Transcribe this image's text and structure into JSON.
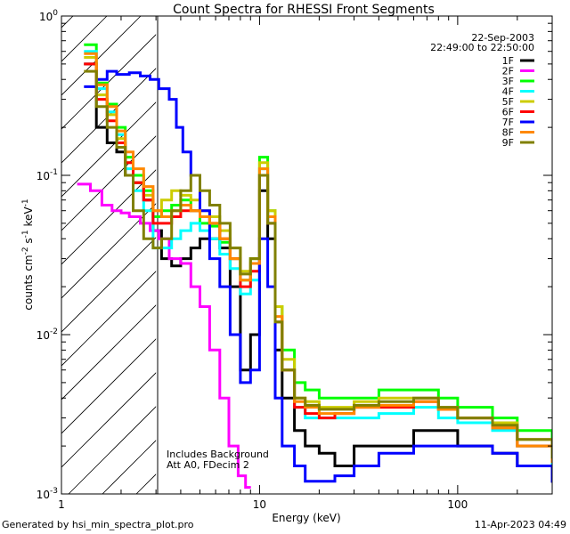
{
  "footer": {
    "generated_by": "Generated by hsi_min_spectra_plot.pro",
    "timestamp": "11-Apr-2023 04:49"
  },
  "chart_data": {
    "type": "line",
    "title": "Count Spectra for RHESSI Front Segments",
    "xlabel": "Energy (keV)",
    "ylabel_parts": [
      "counts cm",
      "-2",
      " s",
      "-1",
      " keV",
      "-1"
    ],
    "xscale": "log",
    "yscale": "log",
    "xlim": [
      1,
      300
    ],
    "ylim": [
      0.001,
      1
    ],
    "x_ticks": [
      {
        "value": 10,
        "label": "10"
      },
      {
        "value": 100,
        "label": "100"
      }
    ],
    "y_ticks": [
      {
        "mantissa": "10",
        "exponent": "0",
        "value": 1
      },
      {
        "mantissa": "10",
        "exponent": "-1",
        "value": 0.1
      },
      {
        "mantissa": "10",
        "exponent": "-2",
        "value": 0.01
      },
      {
        "mantissa": "10",
        "exponent": "-3",
        "value": 0.001
      }
    ],
    "shaded_region": {
      "x_from": 1,
      "x_to": 3,
      "pattern": "diagonal hatch"
    },
    "legend_header": [
      "22-Sep-2003",
      "22:49:00 to 22:50:00"
    ],
    "legend_position": "top-right",
    "annotations": [
      "Includes Background",
      "Att A0, FDecim 2"
    ],
    "series": [
      {
        "name": "1F",
        "color": "#000000",
        "x": [
          1.3,
          1.5,
          1.7,
          1.9,
          2.1,
          2.3,
          2.6,
          2.9,
          3.2,
          3.6,
          4,
          4.5,
          5,
          5.6,
          6.3,
          7.1,
          8,
          9,
          10,
          11,
          12,
          13,
          15,
          17,
          20,
          24,
          30,
          40,
          60,
          80,
          100,
          150,
          200,
          300
        ],
        "y": [
          0.5,
          0.2,
          0.16,
          0.14,
          0.1,
          0.09,
          0.07,
          0.045,
          0.03,
          0.027,
          0.03,
          0.035,
          0.04,
          0.04,
          0.035,
          0.02,
          0.006,
          0.01,
          0.08,
          0.04,
          0.008,
          0.004,
          0.0025,
          0.002,
          0.0018,
          0.0015,
          0.002,
          0.002,
          0.0025,
          0.0025,
          0.002,
          0.0018,
          0.0015,
          0.0012
        ]
      },
      {
        "name": "2F",
        "color": "#ff00ff",
        "x": [
          1.2,
          1.4,
          1.6,
          1.8,
          2,
          2.2,
          2.5,
          2.8,
          3.1,
          3.5,
          4,
          4.5,
          5,
          5.6,
          6.3,
          7,
          7.8,
          8.5
        ],
        "y": [
          0.088,
          0.08,
          0.065,
          0.06,
          0.058,
          0.055,
          0.05,
          0.045,
          0.04,
          0.03,
          0.028,
          0.02,
          0.015,
          0.008,
          0.004,
          0.002,
          0.0013,
          0.0011
        ]
      },
      {
        "name": "3F",
        "color": "#00ff00",
        "x": [
          1.3,
          1.5,
          1.7,
          1.9,
          2.1,
          2.3,
          2.6,
          2.9,
          3.2,
          3.6,
          4,
          4.5,
          5,
          5.6,
          6.3,
          7.1,
          8,
          9,
          10,
          11,
          12,
          13,
          15,
          17,
          20,
          24,
          30,
          40,
          60,
          80,
          100,
          150,
          200,
          300
        ],
        "y": [
          0.66,
          0.38,
          0.28,
          0.2,
          0.13,
          0.1,
          0.08,
          0.055,
          0.06,
          0.065,
          0.07,
          0.06,
          0.05,
          0.048,
          0.038,
          0.03,
          0.022,
          0.03,
          0.13,
          0.06,
          0.015,
          0.008,
          0.005,
          0.0045,
          0.004,
          0.004,
          0.004,
          0.0045,
          0.0045,
          0.004,
          0.0035,
          0.003,
          0.0025,
          0.002
        ]
      },
      {
        "name": "4F",
        "color": "#00ffff",
        "x": [
          1.3,
          1.5,
          1.7,
          1.9,
          2.1,
          2.3,
          2.6,
          2.9,
          3.2,
          3.6,
          4,
          4.5,
          5,
          5.6,
          6.3,
          7.1,
          8,
          9,
          10,
          11,
          12,
          13,
          15,
          17,
          20,
          24,
          30,
          40,
          60,
          80,
          100,
          150,
          200,
          300
        ],
        "y": [
          0.6,
          0.35,
          0.25,
          0.18,
          0.11,
          0.08,
          0.06,
          0.035,
          0.035,
          0.04,
          0.045,
          0.05,
          0.045,
          0.04,
          0.032,
          0.026,
          0.018,
          0.022,
          0.11,
          0.05,
          0.012,
          0.006,
          0.0035,
          0.003,
          0.003,
          0.003,
          0.003,
          0.0032,
          0.0035,
          0.003,
          0.0028,
          0.0025,
          0.002,
          0.0015
        ]
      },
      {
        "name": "5F",
        "color": "#cccc00",
        "x": [
          1.3,
          1.5,
          1.7,
          1.9,
          2.1,
          2.3,
          2.6,
          2.9,
          3.2,
          3.6,
          4,
          4.5,
          5,
          5.6,
          6.3,
          7.1,
          8,
          9,
          10,
          11,
          12,
          13,
          15,
          17,
          20,
          24,
          30,
          40,
          60,
          80,
          100,
          150,
          200,
          300
        ],
        "y": [
          0.55,
          0.32,
          0.24,
          0.17,
          0.12,
          0.09,
          0.075,
          0.06,
          0.07,
          0.08,
          0.075,
          0.07,
          0.06,
          0.055,
          0.045,
          0.035,
          0.025,
          0.03,
          0.12,
          0.06,
          0.015,
          0.007,
          0.004,
          0.0038,
          0.0035,
          0.0035,
          0.0038,
          0.004,
          0.004,
          0.0035,
          0.003,
          0.0028,
          0.0022,
          0.0018
        ]
      },
      {
        "name": "6F",
        "color": "#ff0000",
        "x": [
          1.3,
          1.5,
          1.7,
          1.9,
          2.1,
          2.3,
          2.6,
          2.9,
          3.2,
          3.6,
          4,
          4.5,
          5,
          5.6,
          6.3,
          7.1,
          8,
          9,
          10,
          11,
          12,
          13,
          15,
          17,
          20,
          24,
          30,
          40,
          60,
          80,
          100,
          150,
          200,
          300
        ],
        "y": [
          0.5,
          0.3,
          0.22,
          0.16,
          0.12,
          0.09,
          0.07,
          0.05,
          0.05,
          0.055,
          0.06,
          0.06,
          0.055,
          0.05,
          0.04,
          0.03,
          0.02,
          0.025,
          0.1,
          0.05,
          0.012,
          0.006,
          0.0035,
          0.0032,
          0.003,
          0.0032,
          0.0035,
          0.0035,
          0.0038,
          0.0034,
          0.003,
          0.0026,
          0.002,
          0.0016
        ]
      },
      {
        "name": "7F",
        "color": "#0000ff",
        "x": [
          1.3,
          1.5,
          1.7,
          1.9,
          2.2,
          2.5,
          2.8,
          3.1,
          3.5,
          3.8,
          4.1,
          4.5,
          5,
          5.6,
          6.3,
          7.1,
          8,
          9,
          10,
          11,
          12,
          13,
          15,
          17,
          20,
          24,
          30,
          40,
          60,
          80,
          100,
          150,
          200,
          300
        ],
        "y": [
          0.36,
          0.4,
          0.45,
          0.43,
          0.44,
          0.42,
          0.4,
          0.35,
          0.3,
          0.2,
          0.14,
          0.1,
          0.06,
          0.03,
          0.02,
          0.01,
          0.005,
          0.006,
          0.04,
          0.02,
          0.004,
          0.002,
          0.0015,
          0.0012,
          0.0012,
          0.0013,
          0.0015,
          0.0018,
          0.002,
          0.002,
          0.002,
          0.0018,
          0.0015,
          0.0012
        ]
      },
      {
        "name": "8F",
        "color": "#ff8800",
        "x": [
          1.3,
          1.5,
          1.7,
          1.9,
          2.1,
          2.3,
          2.6,
          2.9,
          3.2,
          3.6,
          4,
          4.5,
          5,
          5.6,
          6.3,
          7.1,
          8,
          9,
          10,
          11,
          12,
          13,
          15,
          17,
          20,
          24,
          30,
          40,
          60,
          80,
          100,
          150,
          200,
          300
        ],
        "y": [
          0.58,
          0.37,
          0.27,
          0.19,
          0.14,
          0.11,
          0.085,
          0.06,
          0.055,
          0.06,
          0.065,
          0.06,
          0.055,
          0.05,
          0.04,
          0.03,
          0.022,
          0.028,
          0.11,
          0.055,
          0.013,
          0.006,
          0.0038,
          0.0035,
          0.0032,
          0.0032,
          0.0035,
          0.0036,
          0.0038,
          0.0034,
          0.003,
          0.0026,
          0.002,
          0.0016
        ]
      },
      {
        "name": "9F",
        "color": "#808000",
        "x": [
          1.3,
          1.5,
          1.7,
          1.9,
          2.1,
          2.3,
          2.6,
          2.9,
          3.2,
          3.6,
          4,
          4.5,
          5,
          5.6,
          6.3,
          7.1,
          8,
          9,
          10,
          11,
          12,
          13,
          15,
          17,
          20,
          24,
          30,
          40,
          60,
          80,
          100,
          150,
          200,
          300
        ],
        "y": [
          0.45,
          0.27,
          0.2,
          0.15,
          0.1,
          0.06,
          0.04,
          0.035,
          0.04,
          0.06,
          0.08,
          0.1,
          0.08,
          0.065,
          0.05,
          0.035,
          0.024,
          0.03,
          0.1,
          0.05,
          0.012,
          0.006,
          0.004,
          0.0036,
          0.0034,
          0.0034,
          0.0036,
          0.0038,
          0.004,
          0.0035,
          0.003,
          0.0027,
          0.0022,
          0.0017
        ]
      }
    ]
  }
}
